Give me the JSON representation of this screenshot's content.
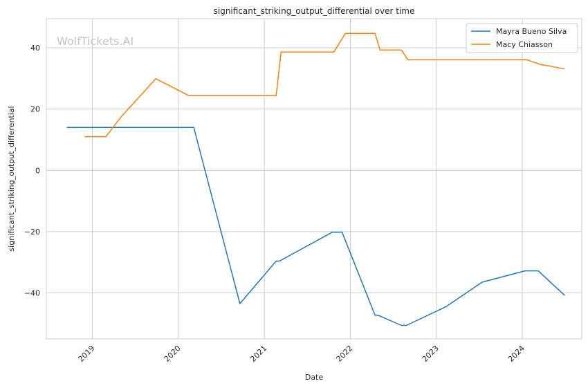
{
  "chart_data": {
    "type": "line",
    "title": "significant_striking_output_differential over time",
    "xlabel": "Date",
    "ylabel": "significant_striking_output_differential",
    "watermark": "WolfTickets.AI",
    "grid": true,
    "legend_position": "top-right",
    "xlim": [
      "2018-06-20",
      "2024-09-10"
    ],
    "ylim": [
      -55,
      49.5
    ],
    "x_ticks": [
      "2019",
      "2020",
      "2021",
      "2022",
      "2023",
      "2024"
    ],
    "y_ticks": [
      40,
      20,
      0,
      -20,
      -40
    ],
    "y_tick_labels": [
      "40",
      "20",
      "0",
      "−20",
      "−40"
    ],
    "series": [
      {
        "name": "Mayra Bueno Silva",
        "color": "#1f77b4",
        "points": [
          [
            "2018-09-15",
            14
          ],
          [
            "2020-03-07",
            14
          ],
          [
            "2020-09-19",
            -43.5
          ],
          [
            "2021-02-20",
            -29.6
          ],
          [
            "2021-03-06",
            -29.6
          ],
          [
            "2021-10-16",
            -20.2
          ],
          [
            "2021-11-27",
            -20.2
          ],
          [
            "2022-04-16",
            -47.3
          ],
          [
            "2022-04-30",
            -47.3
          ],
          [
            "2022-08-06",
            -50.6
          ],
          [
            "2022-08-27",
            -50.6
          ],
          [
            "2023-02-11",
            -44.5
          ],
          [
            "2023-07-15",
            -36.5
          ],
          [
            "2024-01-13",
            -32.8
          ],
          [
            "2024-03-09",
            -32.8
          ],
          [
            "2024-06-29",
            -40.8
          ]
        ]
      },
      {
        "name": "Macy Chiasson",
        "color": "#ff7f0e",
        "points": [
          [
            "2018-11-30",
            11
          ],
          [
            "2019-02-28",
            11
          ],
          [
            "2019-05-04",
            17.5
          ],
          [
            "2019-09-28",
            29.9
          ],
          [
            "2020-02-15",
            24.4
          ],
          [
            "2021-02-20",
            24.4
          ],
          [
            "2021-03-13",
            38.6
          ],
          [
            "2021-10-23",
            38.6
          ],
          [
            "2021-12-11",
            44.7
          ],
          [
            "2022-04-16",
            44.7
          ],
          [
            "2022-05-07",
            39.3
          ],
          [
            "2022-08-06",
            39.3
          ],
          [
            "2022-09-03",
            36.1
          ],
          [
            "2024-01-20",
            36.1
          ],
          [
            "2024-03-16",
            34.6
          ],
          [
            "2024-06-29",
            33.1
          ]
        ]
      }
    ]
  }
}
